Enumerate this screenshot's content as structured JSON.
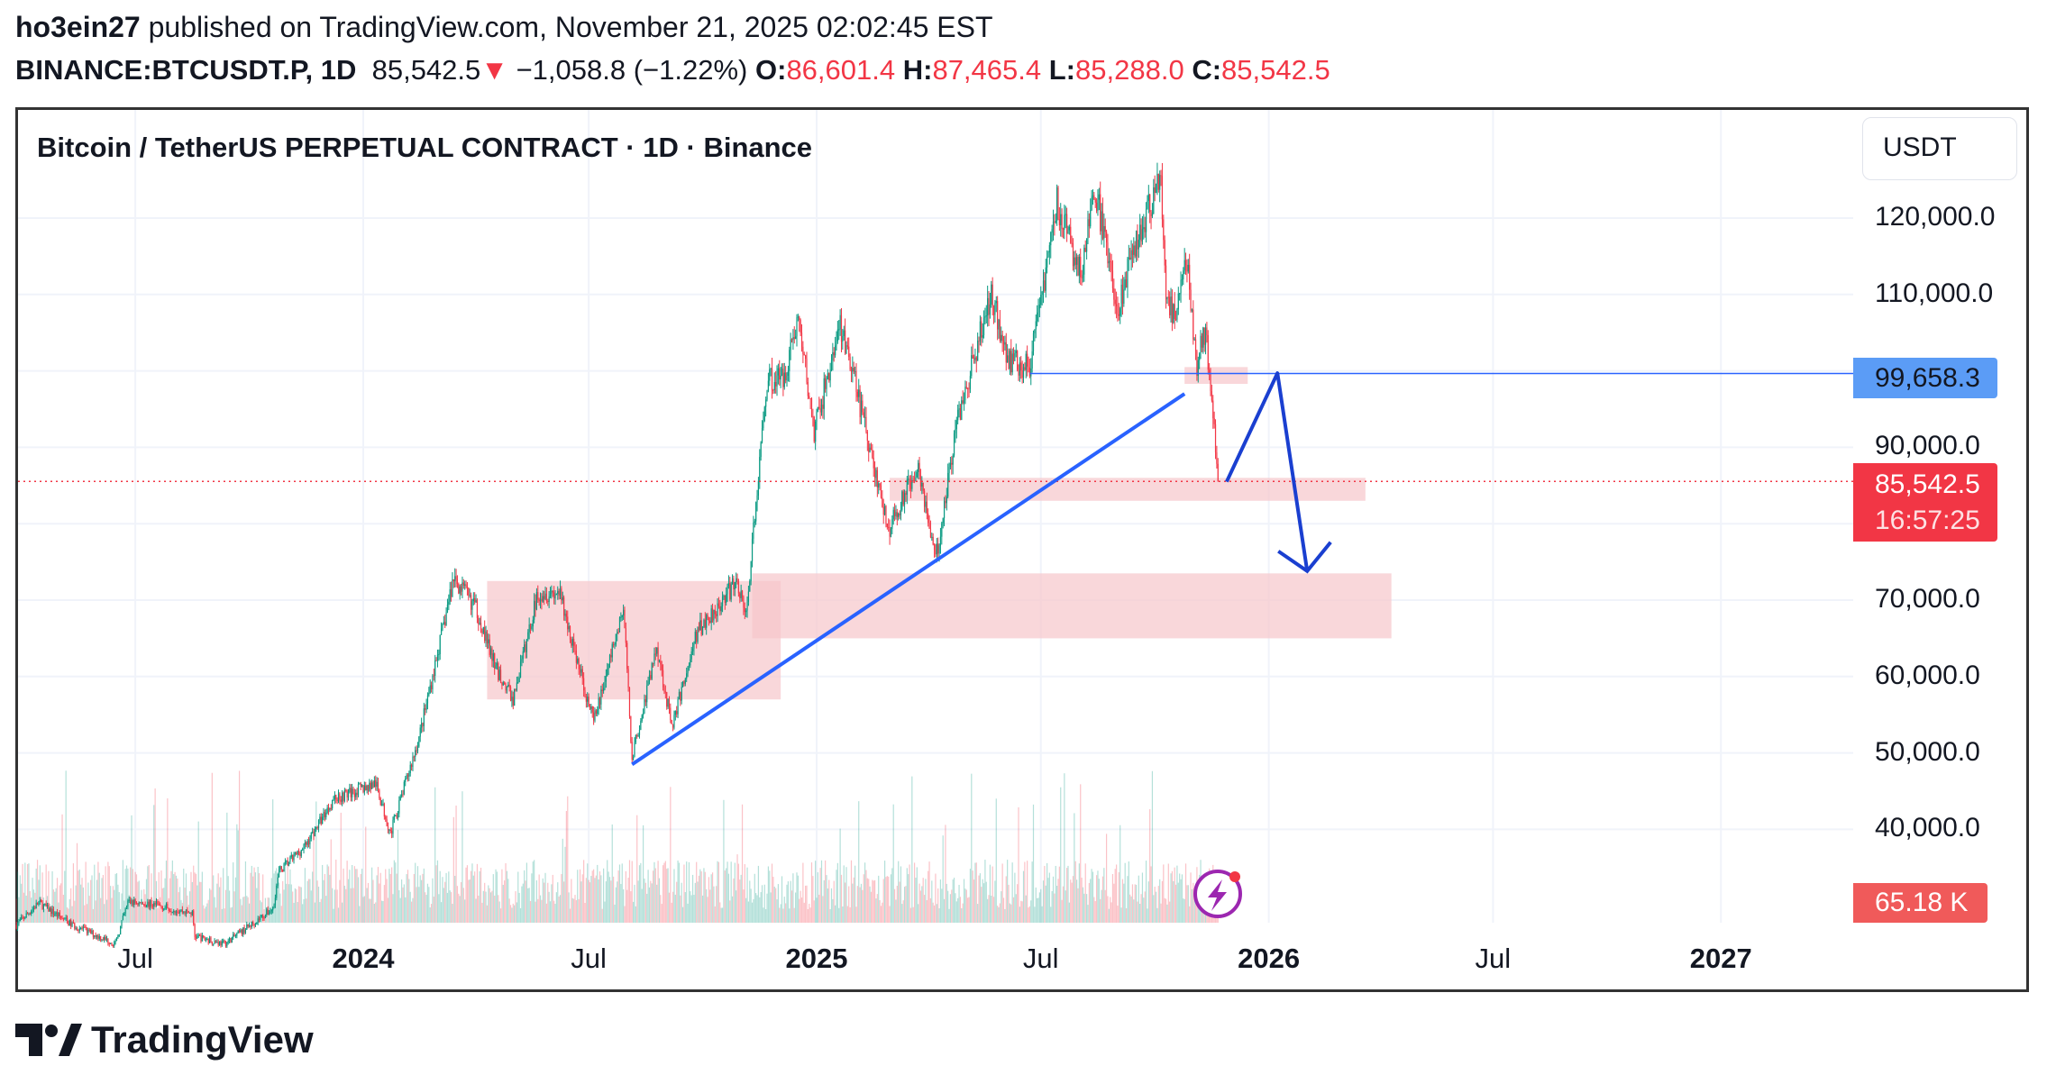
{
  "header": {
    "author": "ho3ein27",
    "published": "published on TradingView.com, November 21, 2025 02:02:45 EST",
    "symbol": "BINANCE:BTCUSDT.P, 1D",
    "last": "85,542.5",
    "change": "−1,058.8 (−1.22%)",
    "o_label": "O:",
    "o": "86,601.4",
    "h_label": "H:",
    "h": "87,465.4",
    "l_label": "L:",
    "l": "85,288.0",
    "c_label": "C:",
    "c": "85,542.5",
    "down_icon": "triangle-down-icon"
  },
  "chart_title": "Bitcoin / TetherUS PERPETUAL CONTRACT · 1D · Binance",
  "currency": "USDT",
  "tags": {
    "line_level": "99,658.3",
    "last_price": "85,542.5",
    "countdown": "16:57:25",
    "volume": "65.18 K"
  },
  "brand": "TradingView",
  "colors": {
    "up": "#089981",
    "down": "#f23645",
    "line": "#2962ff",
    "arrow": "#1a3fd0",
    "zone": "#f7c6cb",
    "level_tag": "#5b9cf6"
  },
  "chart_data": {
    "type": "candlestick",
    "y_ticks": [
      {
        "v": 120000,
        "label": "120,000.0"
      },
      {
        "v": 110000,
        "label": "110,000.0"
      },
      {
        "v": 90000,
        "label": "90,000.0"
      },
      {
        "v": 70000,
        "label": "70,000.0"
      },
      {
        "v": 60000,
        "label": "60,000.0"
      },
      {
        "v": 50000,
        "label": "50,000.0"
      },
      {
        "v": 40000,
        "label": "40,000.0"
      }
    ],
    "x_ticks": [
      {
        "d": "2023-07-01",
        "label": "Jul",
        "bold": false
      },
      {
        "d": "2024-01-01",
        "label": "2024",
        "bold": true
      },
      {
        "d": "2024-07-01",
        "label": "Jul",
        "bold": false
      },
      {
        "d": "2025-01-01",
        "label": "2025",
        "bold": true
      },
      {
        "d": "2025-07-01",
        "label": "Jul",
        "bold": false
      },
      {
        "d": "2026-01-01",
        "label": "2026",
        "bold": true
      },
      {
        "d": "2026-07-01",
        "label": "Jul",
        "bold": false
      },
      {
        "d": "2027-01-01",
        "label": "2027",
        "bold": true
      }
    ],
    "grid": true,
    "approx_price_path": [
      [
        "2023-03-27",
        27500
      ],
      [
        "2023-04-14",
        30400
      ],
      [
        "2023-05-10",
        27600
      ],
      [
        "2023-06-15",
        25000
      ],
      [
        "2023-06-25",
        30500
      ],
      [
        "2023-07-15",
        30200
      ],
      [
        "2023-08-16",
        29000
      ],
      [
        "2023-08-18",
        26000
      ],
      [
        "2023-09-11",
        25000
      ],
      [
        "2023-10-20",
        29600
      ],
      [
        "2023-10-25",
        34500
      ],
      [
        "2023-11-15",
        37800
      ],
      [
        "2023-12-08",
        44000
      ],
      [
        "2024-01-11",
        46000
      ],
      [
        "2024-01-23",
        39500
      ],
      [
        "2024-02-15",
        52000
      ],
      [
        "2024-03-05",
        66000
      ],
      [
        "2024-03-14",
        73000
      ],
      [
        "2024-04-01",
        69000
      ],
      [
        "2024-04-17",
        61000
      ],
      [
        "2024-05-01",
        57000
      ],
      [
        "2024-05-21",
        71000
      ],
      [
        "2024-06-07",
        71000
      ],
      [
        "2024-07-05",
        54000
      ],
      [
        "2024-07-29",
        69000
      ],
      [
        "2024-08-05",
        49500
      ],
      [
        "2024-08-25",
        64000
      ],
      [
        "2024-09-06",
        53500
      ],
      [
        "2024-09-27",
        66000
      ],
      [
        "2024-10-29",
        72500
      ],
      [
        "2024-11-05",
        68000
      ],
      [
        "2024-11-22",
        99000
      ],
      [
        "2024-12-05",
        99000
      ],
      [
        "2024-12-17",
        107000
      ],
      [
        "2024-12-30",
        92000
      ],
      [
        "2025-01-20",
        106000
      ],
      [
        "2025-02-03",
        97000
      ],
      [
        "2025-02-28",
        79000
      ],
      [
        "2025-03-24",
        88000
      ],
      [
        "2025-04-07",
        75000
      ],
      [
        "2025-04-25",
        94000
      ],
      [
        "2025-05-22",
        110000
      ],
      [
        "2025-06-05",
        101500
      ],
      [
        "2025-06-22",
        100500
      ],
      [
        "2025-07-14",
        122000
      ],
      [
        "2025-08-02",
        112500
      ],
      [
        "2025-08-14",
        123500
      ],
      [
        "2025-09-01",
        108500
      ],
      [
        "2025-09-18",
        117500
      ],
      [
        "2025-10-06",
        125500
      ],
      [
        "2025-10-10",
        110000
      ],
      [
        "2025-10-17",
        106500
      ],
      [
        "2025-10-27",
        115000
      ],
      [
        "2025-11-04",
        100500
      ],
      [
        "2025-11-11",
        106000
      ],
      [
        "2025-11-21",
        85542.5
      ]
    ],
    "last_price": 85542.5,
    "drawings": {
      "horizontal_line": {
        "price": 99658.3,
        "from": "2025-06-22"
      },
      "zones": [
        {
          "from": "2024-04-10",
          "to": "2024-12-03",
          "top": 72500,
          "bottom": 57000
        },
        {
          "from": "2024-11-10",
          "to": "2026-04-10",
          "top": 73500,
          "bottom": 65000
        },
        {
          "from": "2025-03-01",
          "to": "2026-03-20",
          "top": 86000,
          "bottom": 83000
        },
        {
          "from": "2025-10-25",
          "to": "2025-12-15",
          "top": 100500,
          "bottom": 98300
        }
      ],
      "trendline": [
        [
          "2024-08-05",
          48500
        ],
        [
          "2025-10-25",
          97000
        ]
      ],
      "projection": [
        [
          "2025-11-28",
          85500
        ],
        [
          "2026-01-08",
          99700
        ],
        [
          "2026-02-01",
          73800
        ]
      ]
    }
  }
}
